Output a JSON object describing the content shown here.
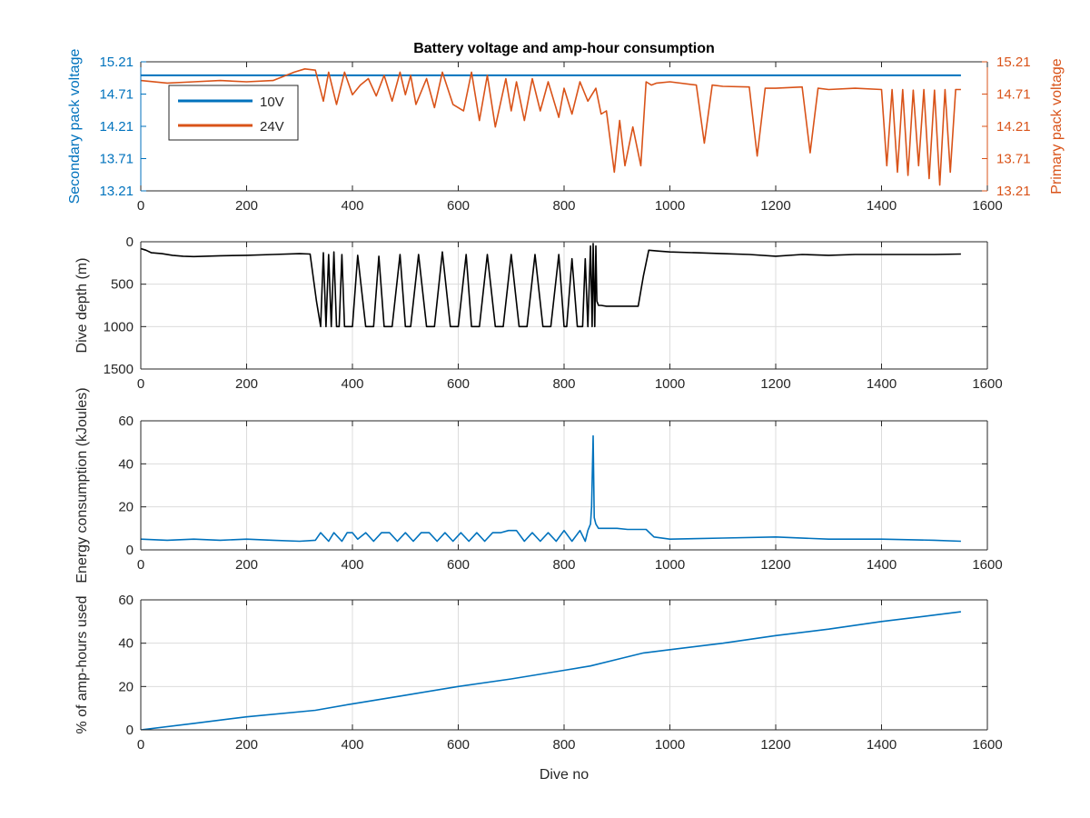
{
  "title": "Battery voltage and amp-hour consumption",
  "colors": {
    "blue": "#0072BD",
    "orange": "#D95319",
    "black": "#000000",
    "grid": "#DCDCDC",
    "axis": "#262626"
  },
  "chart_data": [
    {
      "type": "line",
      "title": "Battery voltage and amp-hour consumption",
      "ylabel": "Secondary pack voltage",
      "y2label": "Primary pack voltage",
      "xlim": [
        0,
        1600
      ],
      "ylim": [
        13.21,
        15.21
      ],
      "y2lim": [
        13.21,
        15.21
      ],
      "xticks": [
        "0",
        "200",
        "400",
        "600",
        "800",
        "1000",
        "1200",
        "1400",
        "1600"
      ],
      "yticks": [
        "13.21",
        "13.71",
        "14.21",
        "14.71",
        "15.21"
      ],
      "y2ticks": [
        "13.21",
        "13.71",
        "14.21",
        "14.71",
        "15.21"
      ],
      "grid": false,
      "legend": {
        "position": "top-left",
        "entries": [
          "10V",
          "24V"
        ]
      },
      "series": [
        {
          "name": "10V",
          "axis": "left",
          "x": [
            0,
            1550
          ],
          "y": [
            15.0,
            15.0
          ]
        },
        {
          "name": "24V",
          "axis": "right",
          "x": [
            0,
            50,
            100,
            150,
            200,
            250,
            290,
            310,
            330,
            345,
            355,
            370,
            385,
            400,
            415,
            430,
            445,
            460,
            475,
            490,
            500,
            510,
            520,
            540,
            555,
            570,
            590,
            610,
            625,
            640,
            655,
            670,
            690,
            700,
            710,
            725,
            740,
            755,
            770,
            790,
            800,
            815,
            830,
            845,
            860,
            870,
            880,
            895,
            905,
            915,
            930,
            945,
            955,
            965,
            975,
            1000,
            1050,
            1065,
            1080,
            1100,
            1150,
            1165,
            1180,
            1200,
            1250,
            1265,
            1280,
            1300,
            1350,
            1400,
            1410,
            1420,
            1430,
            1440,
            1450,
            1460,
            1470,
            1480,
            1490,
            1500,
            1510,
            1520,
            1530,
            1540,
            1550
          ],
          "y": [
            14.92,
            14.88,
            14.9,
            14.92,
            14.9,
            14.92,
            15.05,
            15.1,
            15.08,
            14.6,
            15.05,
            14.55,
            15.05,
            14.7,
            14.85,
            14.95,
            14.68,
            15.0,
            14.6,
            15.05,
            14.7,
            15.0,
            14.55,
            14.95,
            14.5,
            15.05,
            14.55,
            14.45,
            15.05,
            14.3,
            15.0,
            14.2,
            14.95,
            14.45,
            14.9,
            14.3,
            14.95,
            14.45,
            14.9,
            14.35,
            14.8,
            14.4,
            14.9,
            14.6,
            14.8,
            14.4,
            14.45,
            13.5,
            14.3,
            13.6,
            14.2,
            13.6,
            14.9,
            14.85,
            14.88,
            14.9,
            14.85,
            13.95,
            14.85,
            14.83,
            14.82,
            13.75,
            14.8,
            14.8,
            14.82,
            13.8,
            14.8,
            14.78,
            14.8,
            14.78,
            13.6,
            14.78,
            13.5,
            14.78,
            13.45,
            14.77,
            13.6,
            14.78,
            13.4,
            14.77,
            13.3,
            14.78,
            13.5,
            14.78,
            14.78
          ]
        }
      ]
    },
    {
      "type": "line",
      "ylabel": "Dive depth (m)",
      "xlim": [
        0,
        1600
      ],
      "ylim": [
        0,
        1500
      ],
      "y_reversed": true,
      "xticks": [
        "0",
        "200",
        "400",
        "600",
        "800",
        "1000",
        "1200",
        "1400",
        "1600"
      ],
      "yticks": [
        "0",
        "500",
        "1000",
        "1500"
      ],
      "grid": true,
      "series": [
        {
          "x": [
            0,
            10,
            20,
            40,
            60,
            80,
            100,
            150,
            200,
            250,
            300,
            320,
            332,
            340,
            345,
            350,
            355,
            360,
            365,
            370,
            375,
            380,
            385,
            400,
            410,
            425,
            440,
            450,
            460,
            475,
            490,
            500,
            510,
            525,
            540,
            555,
            570,
            585,
            600,
            615,
            625,
            640,
            655,
            670,
            685,
            700,
            715,
            730,
            745,
            760,
            775,
            790,
            800,
            805,
            815,
            825,
            835,
            840,
            845,
            850,
            853,
            855,
            858,
            860,
            862,
            865,
            870,
            880,
            900,
            920,
            940,
            950,
            960,
            980,
            1000,
            1050,
            1100,
            1150,
            1200,
            1250,
            1300,
            1350,
            1400,
            1450,
            1500,
            1550
          ],
          "y": [
            80,
            100,
            130,
            140,
            160,
            170,
            175,
            165,
            160,
            150,
            140,
            145,
            700,
            1000,
            130,
            1000,
            150,
            1000,
            120,
            1000,
            1000,
            150,
            1000,
            1000,
            160,
            1000,
            1000,
            170,
            1000,
            1000,
            150,
            1000,
            1000,
            150,
            1000,
            1000,
            120,
            1000,
            1000,
            150,
            1000,
            1000,
            150,
            1000,
            1000,
            150,
            1000,
            1000,
            150,
            1000,
            1000,
            150,
            1000,
            1000,
            200,
            1000,
            1000,
            200,
            1000,
            50,
            1000,
            20,
            1000,
            50,
            700,
            750,
            750,
            760,
            760,
            760,
            760,
            400,
            100,
            110,
            120,
            130,
            140,
            150,
            170,
            150,
            160,
            150,
            150,
            150,
            150,
            145
          ]
        }
      ]
    },
    {
      "type": "line",
      "ylabel": "Energy consumption (kJoules)",
      "xlim": [
        0,
        1600
      ],
      "ylim": [
        0,
        60
      ],
      "xticks": [
        "0",
        "200",
        "400",
        "600",
        "800",
        "1000",
        "1200",
        "1400",
        "1600"
      ],
      "yticks": [
        "0",
        "20",
        "40",
        "60"
      ],
      "grid": true,
      "series": [
        {
          "x": [
            0,
            50,
            100,
            150,
            200,
            250,
            300,
            330,
            340,
            355,
            365,
            380,
            390,
            400,
            410,
            425,
            440,
            455,
            470,
            485,
            500,
            515,
            530,
            545,
            560,
            575,
            590,
            605,
            620,
            635,
            650,
            665,
            680,
            695,
            710,
            725,
            740,
            755,
            770,
            785,
            800,
            815,
            830,
            840,
            845,
            850,
            852,
            855,
            857,
            860,
            865,
            875,
            900,
            920,
            940,
            955,
            970,
            1000,
            1100,
            1200,
            1300,
            1400,
            1500,
            1550
          ],
          "y": [
            5,
            4.5,
            5,
            4.5,
            5,
            4.5,
            4,
            4.5,
            8,
            4,
            8,
            4,
            8,
            8,
            5,
            8,
            4,
            8,
            8,
            4,
            8,
            4,
            8,
            8,
            4,
            8,
            4,
            8,
            4,
            8,
            4,
            8,
            8,
            9,
            9,
            4,
            8,
            4,
            8,
            4,
            9,
            4,
            9,
            4,
            9,
            12,
            20,
            53,
            15,
            12,
            10,
            10,
            10,
            9.5,
            9.5,
            9.5,
            6,
            5,
            5.5,
            6,
            5,
            5,
            4.5,
            4
          ]
        }
      ]
    },
    {
      "type": "line",
      "ylabel": "% of amp-hours used",
      "xlabel": "Dive no",
      "xlim": [
        0,
        1600
      ],
      "ylim": [
        0,
        60
      ],
      "xticks": [
        "0",
        "200",
        "400",
        "600",
        "800",
        "1000",
        "1200",
        "1400",
        "1600"
      ],
      "yticks": [
        "0",
        "20",
        "40",
        "60"
      ],
      "grid": true,
      "series": [
        {
          "x": [
            0,
            100,
            200,
            330,
            400,
            500,
            600,
            700,
            800,
            850,
            900,
            950,
            1000,
            1100,
            1200,
            1300,
            1400,
            1500,
            1550
          ],
          "y": [
            0,
            3,
            6,
            9,
            12,
            16,
            20,
            23.5,
            27.5,
            29.5,
            32.5,
            35.5,
            37,
            40,
            43.5,
            46.5,
            50,
            53,
            54.5
          ]
        }
      ]
    }
  ]
}
